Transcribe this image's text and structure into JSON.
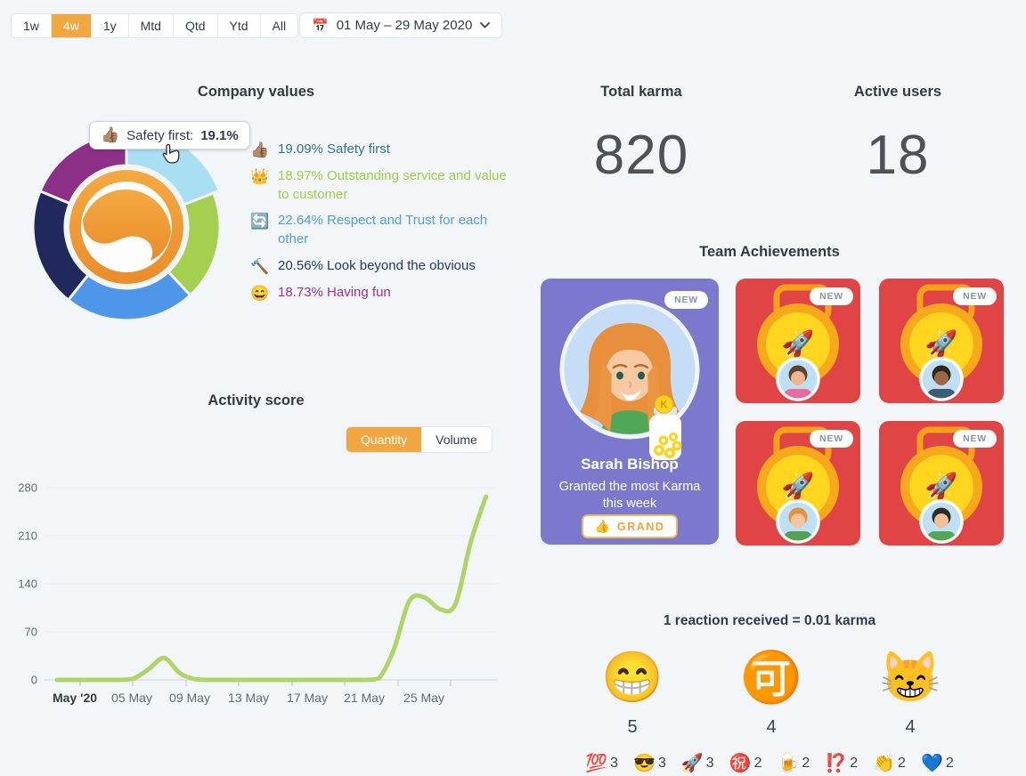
{
  "toolbar": {
    "ranges": [
      {
        "label": "1w",
        "active": false
      },
      {
        "label": "4w",
        "active": true
      },
      {
        "label": "1y",
        "active": false
      },
      {
        "label": "Mtd",
        "active": false
      },
      {
        "label": "Qtd",
        "active": false
      },
      {
        "label": "Ytd",
        "active": false
      },
      {
        "label": "All",
        "active": false
      }
    ],
    "calendar_icon": "📅",
    "date_range": "01 May – 29 May 2020"
  },
  "company_values": {
    "title": "Company values",
    "tooltip": {
      "emoji": "👍🏽",
      "label": "Safety first:",
      "value": "19.1%"
    },
    "legend": [
      {
        "emoji": "👍🏽",
        "pct": "19.09%",
        "label": "Safety first",
        "color": "#37718e"
      },
      {
        "emoji": "👑",
        "pct": "18.97%",
        "label": "Outstanding service and value to customer",
        "color": "#a2cc49"
      },
      {
        "emoji": "🔄",
        "pct": "22.64%",
        "label": "Respect and Trust for each other",
        "color": "#4f9be8"
      },
      {
        "emoji": "🔨",
        "pct": "20.56%",
        "label": "Look beyond the obvious",
        "color": "#21386b"
      },
      {
        "emoji": "😄",
        "pct": "18.73%",
        "label": "Having fun",
        "color": "#9c3292"
      }
    ]
  },
  "activity": {
    "title": "Activity score",
    "toggle": [
      {
        "label": "Quantity",
        "active": true
      },
      {
        "label": "Volume",
        "active": false
      }
    ]
  },
  "stats": {
    "total_karma": {
      "label": "Total karma",
      "value": "820"
    },
    "active_users": {
      "label": "Active users",
      "value": "18"
    }
  },
  "achievements": {
    "title": "Team Achievements",
    "featured": {
      "badge": "NEW",
      "name": "Sarah Bishop",
      "description": "Granted the most Karma this week",
      "button": {
        "emoji": "👍",
        "label": "GRAND"
      }
    },
    "medals": [
      {
        "badge": "NEW",
        "emoji": "🚀",
        "avatar": {
          "bg": "#bfdff2",
          "skin": "#f0b48f",
          "hair": "#5b4632",
          "shirt": "#e86ca0"
        }
      },
      {
        "badge": "NEW",
        "emoji": "🚀",
        "avatar": {
          "bg": "#bfdff2",
          "skin": "#9c6744",
          "hair": "#2e2621",
          "shirt": "#3b5d75"
        }
      },
      {
        "badge": "NEW",
        "emoji": "🚀",
        "avatar": {
          "bg": "#bfdff2",
          "skin": "#f5c6a0",
          "hair": "#e78f3c",
          "shirt": "#53a158"
        }
      },
      {
        "badge": "NEW",
        "emoji": "🚀",
        "avatar": {
          "bg": "#bfdff2",
          "skin": "#f0c098",
          "hair": "#2b2b2b",
          "shirt": "#4fa757"
        }
      }
    ]
  },
  "reactions": {
    "title": "1 reaction received = 0.01 karma",
    "top": [
      {
        "emoji": "😁",
        "count": "5"
      },
      {
        "emoji": "🉑",
        "count": "4"
      },
      {
        "emoji": "😸",
        "count": "4"
      }
    ],
    "others": [
      {
        "emoji": "💯",
        "count": "3"
      },
      {
        "emoji": "😎",
        "count": "3"
      },
      {
        "emoji": "🚀",
        "count": "3"
      },
      {
        "emoji": "㊗️",
        "count": "2"
      },
      {
        "emoji": "🍺",
        "count": "2"
      },
      {
        "emoji": "⁉️",
        "count": "2"
      },
      {
        "emoji": "👏",
        "count": "2"
      },
      {
        "emoji": "💙",
        "count": "2"
      }
    ]
  },
  "chart_data": [
    {
      "type": "pie",
      "title": "Company values",
      "labels": [
        "Safety first",
        "Outstanding service and value to customer",
        "Respect and Trust for each other",
        "Look beyond the obvious",
        "Having fun"
      ],
      "values": [
        19.09,
        18.97,
        22.64,
        20.56,
        18.73
      ],
      "colors": [
        "#a9dff2",
        "#a5cf4e",
        "#4d96e8",
        "#21295c",
        "#8c3087"
      ],
      "hovered_slice": "Safety first",
      "donut": true,
      "legend_position": "right"
    },
    {
      "type": "line",
      "title": "Activity score",
      "mode": "Quantity",
      "x_unit": "day of May 2020",
      "x": [
        1,
        2,
        3,
        4,
        5,
        6,
        7,
        8,
        9,
        10,
        11,
        12,
        13,
        14,
        15,
        16,
        17,
        18,
        19,
        20,
        21,
        22,
        23,
        24,
        25,
        26,
        27,
        28,
        29
      ],
      "values": [
        0,
        0,
        0,
        0,
        0,
        2,
        16,
        32,
        10,
        1,
        0,
        0,
        0,
        0,
        0,
        0,
        0,
        0,
        0,
        0,
        0,
        2,
        45,
        115,
        120,
        103,
        110,
        200,
        267
      ],
      "ylim": [
        0,
        280
      ],
      "yticks": [
        0,
        70,
        140,
        210,
        280
      ],
      "xtick_labels": [
        "May '20",
        "05 May",
        "09 May",
        "13 May",
        "17 May",
        "21 May",
        "25 May"
      ],
      "line_color": "#b0d465",
      "grid": true,
      "legend_position": "none"
    }
  ]
}
